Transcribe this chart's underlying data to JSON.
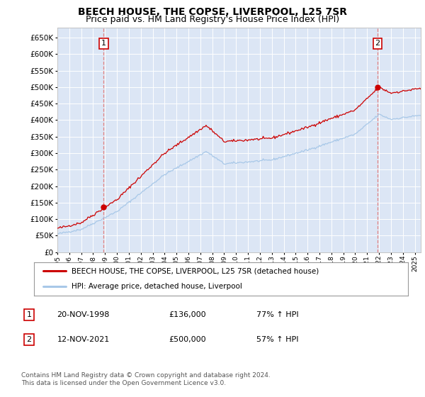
{
  "title": "BEECH HOUSE, THE COPSE, LIVERPOOL, L25 7SR",
  "subtitle": "Price paid vs. HM Land Registry's House Price Index (HPI)",
  "ylim": [
    0,
    680000
  ],
  "yticks": [
    0,
    50000,
    100000,
    150000,
    200000,
    250000,
    300000,
    350000,
    400000,
    450000,
    500000,
    550000,
    600000,
    650000
  ],
  "plot_bg_color": "#dce6f5",
  "sale1_date_num": 1998.89,
  "sale1_price": 136000,
  "sale1_label": "1",
  "sale2_date_num": 2021.87,
  "sale2_price": 500000,
  "sale2_label": "2",
  "hpi_line_color": "#a8c8e8",
  "price_line_color": "#cc0000",
  "sale_marker_color": "#cc0000",
  "sale_box_color": "#cc0000",
  "legend_label_price": "BEECH HOUSE, THE COPSE, LIVERPOOL, L25 7SR (detached house)",
  "legend_label_hpi": "HPI: Average price, detached house, Liverpool",
  "annotation1": [
    "1",
    "20-NOV-1998",
    "£136,000",
    "77% ↑ HPI"
  ],
  "annotation2": [
    "2",
    "12-NOV-2021",
    "£500,000",
    "57% ↑ HPI"
  ],
  "footnote": "Contains HM Land Registry data © Crown copyright and database right 2024.\nThis data is licensed under the Open Government Licence v3.0.",
  "xmin": 1995.0,
  "xmax": 2025.5,
  "title_fontsize": 10,
  "subtitle_fontsize": 9
}
